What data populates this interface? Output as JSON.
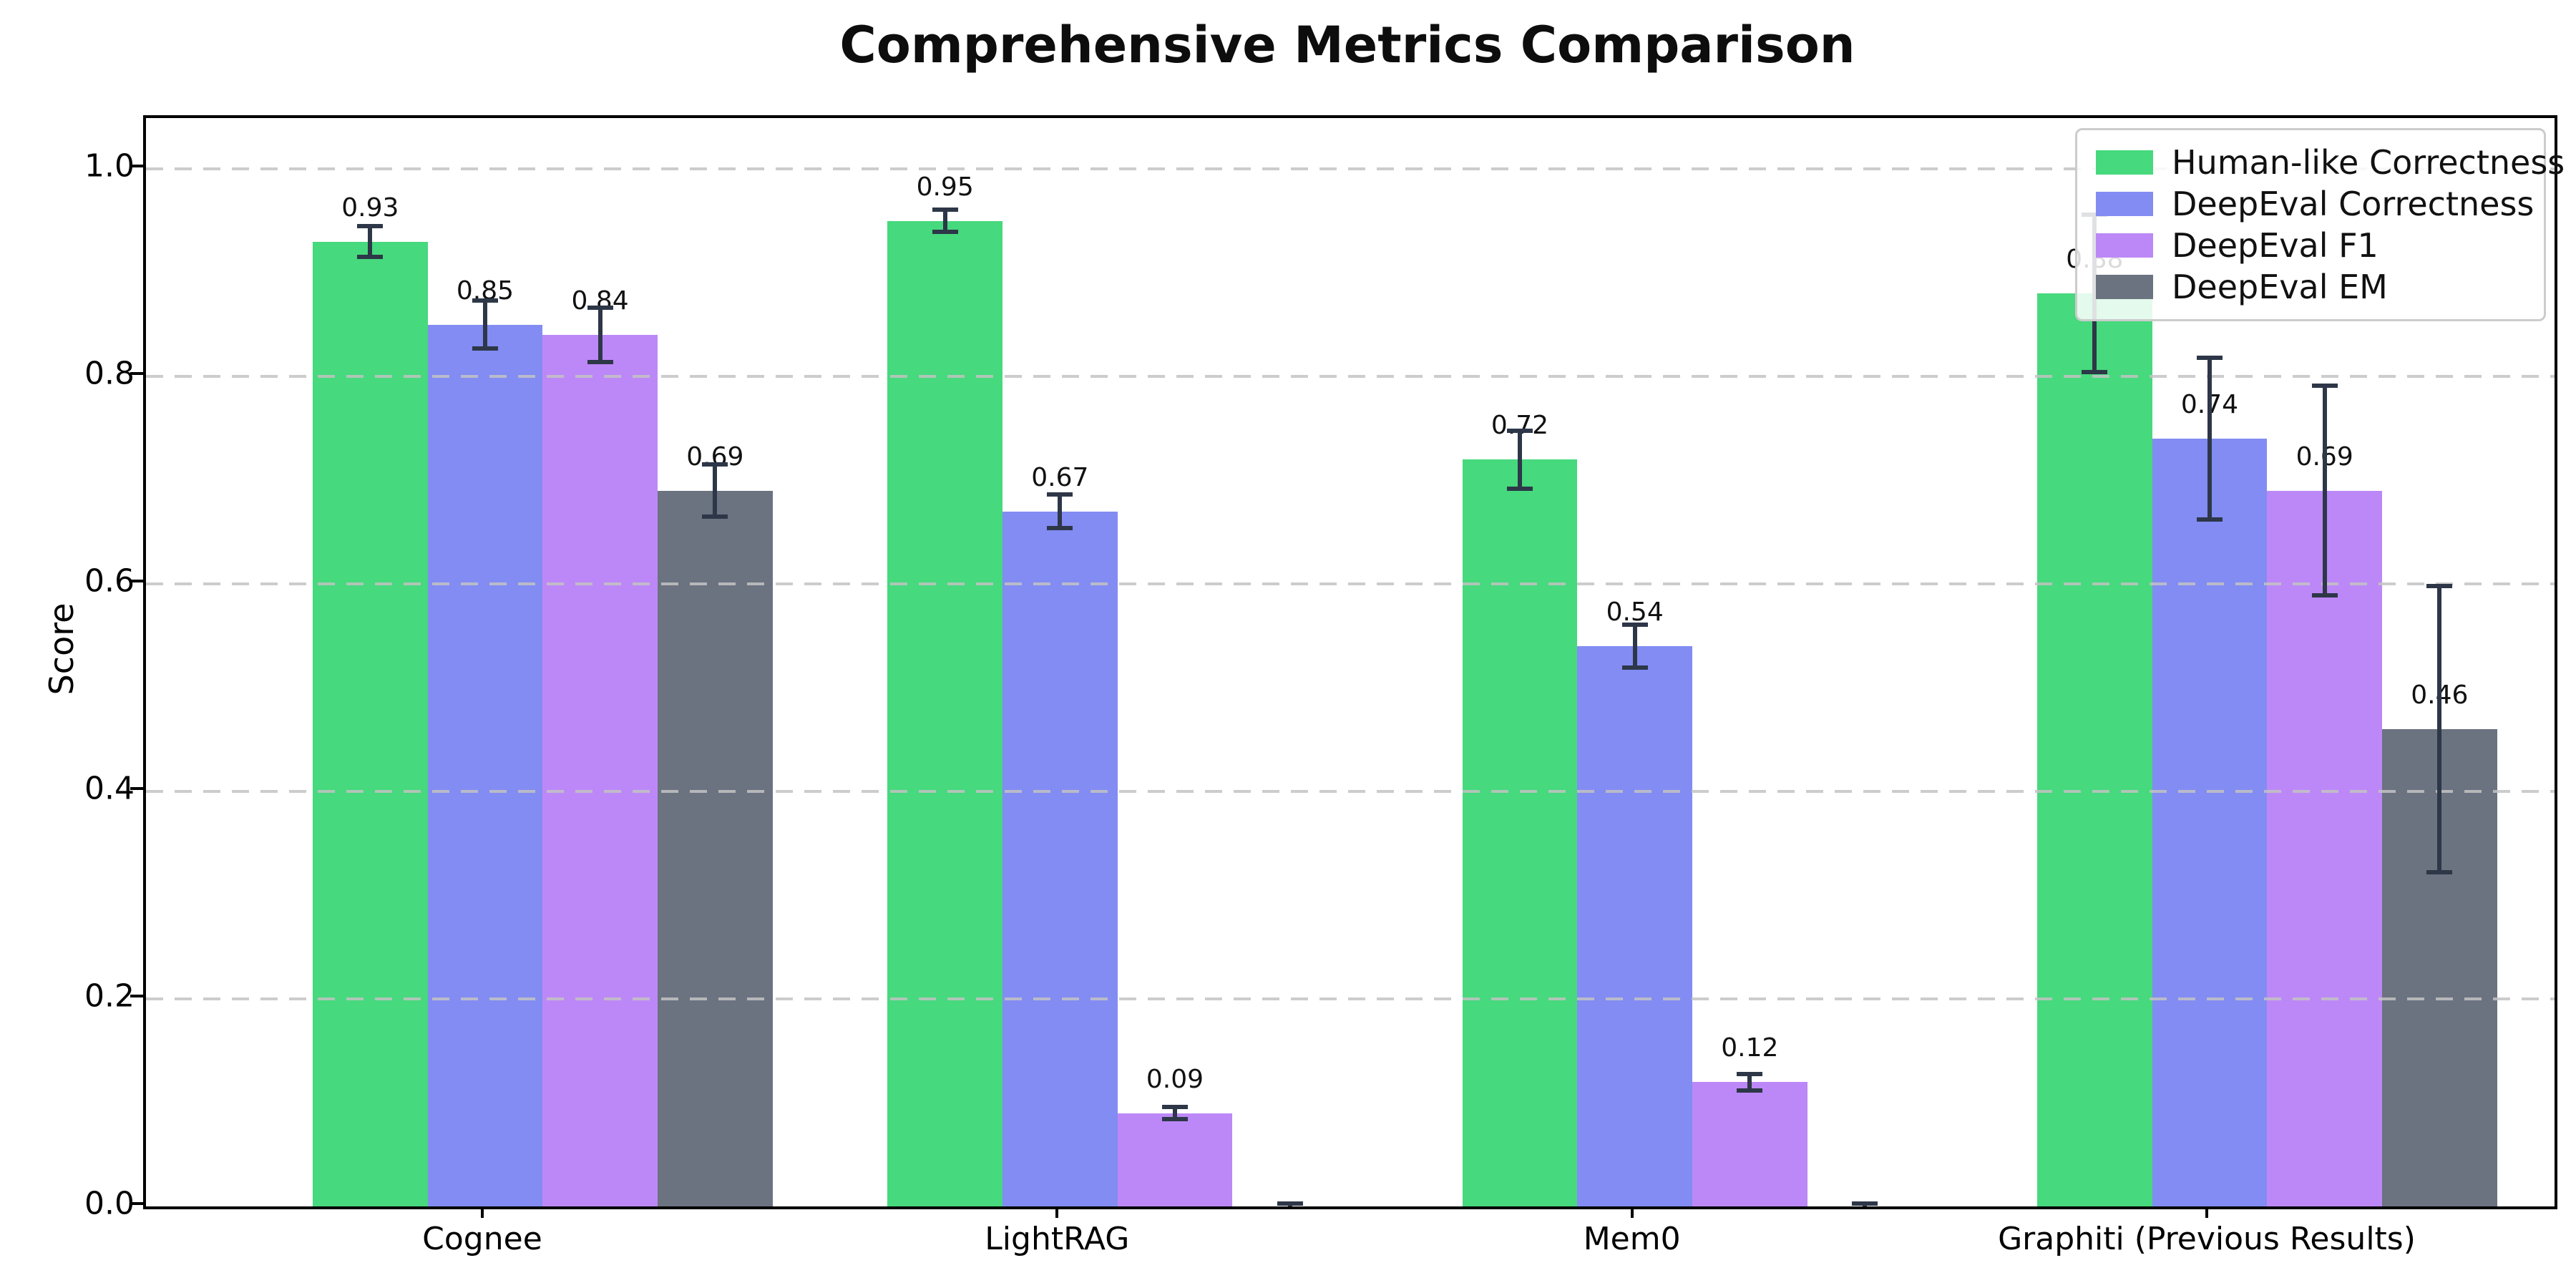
{
  "chart_data": {
    "type": "bar",
    "title": "Comprehensive Metrics Comparison",
    "xlabel": "",
    "ylabel": "Score",
    "categories": [
      "Cognee",
      "LightRAG",
      "Mem0",
      "Graphiti (Previous Results)"
    ],
    "ylim": [
      0,
      1.05
    ],
    "yticks": [
      0.0,
      0.2,
      0.4,
      0.6,
      0.8,
      1.0
    ],
    "grid": "horizontal-dashed",
    "legend_position": "upper-right",
    "error_bar_color": "#2d3748",
    "series": [
      {
        "name": "Human-like Correctness",
        "color": "#46d97d",
        "values": [
          0.93,
          0.95,
          0.72,
          0.88
        ],
        "errors": [
          0.017,
          0.013,
          0.03,
          0.078
        ],
        "bar_labels": [
          "0.93",
          "0.95",
          "0.72",
          "0.88"
        ]
      },
      {
        "name": "DeepEval Correctness",
        "color": "#828cf2",
        "values": [
          0.85,
          0.67,
          0.54,
          0.74
        ],
        "errors": [
          0.025,
          0.018,
          0.023,
          0.08
        ],
        "bar_labels": [
          "0.85",
          "0.67",
          "0.54",
          "0.74"
        ]
      },
      {
        "name": "DeepEval F1",
        "color": "#bc88f7",
        "values": [
          0.84,
          0.09,
          0.12,
          0.69
        ],
        "errors": [
          0.028,
          0.008,
          0.01,
          0.103
        ],
        "bar_labels": [
          "0.84",
          "0.09",
          "0.12",
          "0.69"
        ]
      },
      {
        "name": "DeepEval EM",
        "color": "#6b7280",
        "values": [
          0.69,
          0.0,
          0.0,
          0.46
        ],
        "errors": [
          0.027,
          0.005,
          0.005,
          0.14
        ],
        "bar_labels": [
          "0.69",
          "",
          "",
          "0.46"
        ]
      }
    ]
  }
}
